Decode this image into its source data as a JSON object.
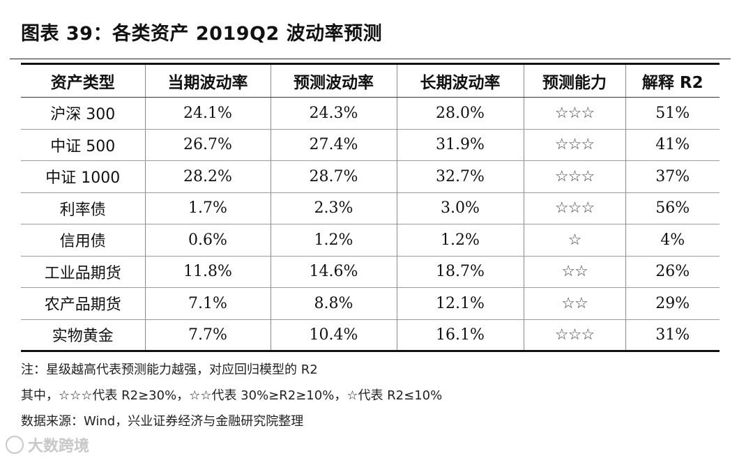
{
  "title": "图表 39：各类资产 2019Q2 波动率预测",
  "table": {
    "headers": [
      "资产类型",
      "当期波动率",
      "预测波动率",
      "长期波动率",
      "预测能力",
      "解释 R2"
    ],
    "rows": [
      [
        "沪深 300",
        "24.1%",
        "24.3%",
        "28.0%",
        "☆☆☆",
        "51%"
      ],
      [
        "中证 500",
        "26.7%",
        "27.4%",
        "31.9%",
        "☆☆☆",
        "41%"
      ],
      [
        "中证 1000",
        "28.2%",
        "28.7%",
        "32.7%",
        "☆☆☆",
        "37%"
      ],
      [
        "利率债",
        "1.7%",
        "2.3%",
        "3.0%",
        "☆☆☆",
        "56%"
      ],
      [
        "信用债",
        "0.6%",
        "1.2%",
        "1.2%",
        "☆",
        "4%"
      ],
      [
        "工业品期货",
        "11.8%",
        "14.6%",
        "18.7%",
        "☆☆",
        "26%"
      ],
      [
        "农产品期货",
        "7.1%",
        "8.8%",
        "12.1%",
        "☆☆",
        "29%"
      ],
      [
        "实物黄金",
        "7.7%",
        "10.4%",
        "16.1%",
        "☆☆☆",
        "31%"
      ]
    ]
  },
  "notes": [
    "注：星级越高代表预测能力越强，对应回归模型的 R2",
    "其中，☆☆☆代表 R2≥30%，☆☆代表 30%≥R2≥10%，☆代表 R2≤10%",
    "数据来源：Wind，兴业证券经济与金融研究院整理"
  ],
  "watermark": "大数跨境"
}
